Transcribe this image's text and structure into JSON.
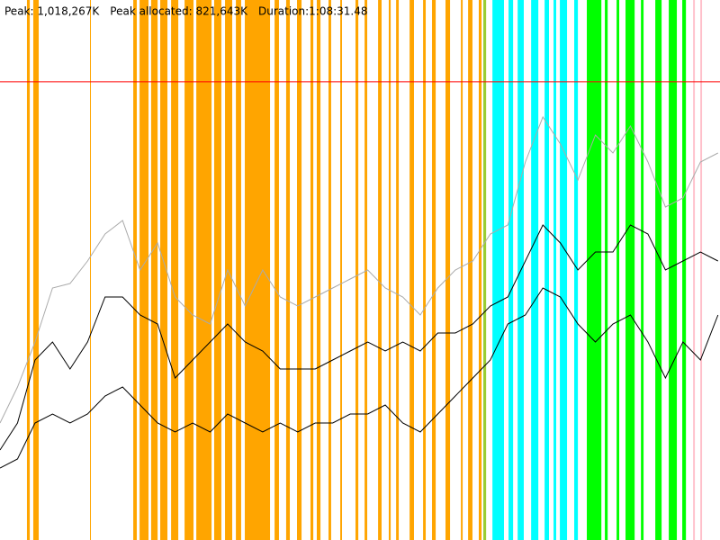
{
  "chart_data": {
    "type": "line",
    "annotations": [
      "Peak: 1,018,267K",
      "Peak allocated: 821,643K",
      "Duration:1:08:31.48"
    ],
    "xlim": [
      0,
      4111.48
    ],
    "ylim": [
      0,
      1200
    ],
    "reference_line": {
      "value": 1018.267,
      "color": "#ff0000"
    },
    "bands": [
      {
        "color": "#ffa500",
        "spans": [
          [
            154,
            170
          ],
          [
            190,
            221
          ],
          [
            514,
            519
          ],
          [
            761,
            781
          ],
          [
            797,
            848
          ],
          [
            863,
            900
          ],
          [
            915,
            956
          ],
          [
            977,
            1018
          ],
          [
            1054,
            1105
          ],
          [
            1121,
            1208
          ],
          [
            1223,
            1264
          ],
          [
            1285,
            1326
          ],
          [
            1347,
            1377
          ],
          [
            1398,
            1542
          ],
          [
            1568,
            1593
          ],
          [
            1634,
            1655
          ],
          [
            1696,
            1722
          ],
          [
            1773,
            1789
          ],
          [
            1809,
            1830
          ],
          [
            1876,
            1891
          ],
          [
            1943,
            1953
          ],
          [
            2030,
            2046
          ],
          [
            2082,
            2097
          ],
          [
            2159,
            2179
          ],
          [
            2220,
            2231
          ],
          [
            2262,
            2277
          ],
          [
            2339,
            2364
          ],
          [
            2416,
            2431
          ],
          [
            2467,
            2488
          ],
          [
            2544,
            2570
          ],
          [
            2632,
            2642
          ],
          [
            2673,
            2698
          ],
          [
            2734,
            2750
          ]
        ]
      },
      {
        "color": "#9acd32",
        "spans": [
          [
            2760,
            2776
          ]
        ]
      },
      {
        "color": "#00ffff",
        "spans": [
          [
            2812,
            2878
          ],
          [
            2904,
            2930
          ],
          [
            2956,
            2991
          ],
          [
            3033,
            3074
          ],
          [
            3110,
            3135
          ],
          [
            3161,
            3176
          ],
          [
            3197,
            3238
          ],
          [
            3279,
            3300
          ]
        ]
      },
      {
        "color": "#00ff00",
        "spans": [
          [
            3351,
            3434
          ],
          [
            3454,
            3470
          ],
          [
            3521,
            3536
          ],
          [
            3572,
            3624
          ],
          [
            3660,
            3675
          ],
          [
            3742,
            3778
          ],
          [
            3819,
            3865
          ],
          [
            3896,
            3917
          ]
        ]
      },
      {
        "color": "#ffc0cb",
        "spans": [
          [
            3958,
            3968
          ],
          [
            3999,
            4009
          ]
        ]
      }
    ],
    "x": [
      0,
      100,
      200,
      300,
      400,
      500,
      600,
      700,
      800,
      900,
      1000,
      1100,
      1200,
      1300,
      1400,
      1500,
      1600,
      1700,
      1800,
      1900,
      2000,
      2100,
      2200,
      2300,
      2400,
      2500,
      2600,
      2700,
      2800,
      2900,
      3000,
      3100,
      3200,
      3300,
      3400,
      3500,
      3600,
      3700,
      3800,
      3900,
      4000,
      4100
    ],
    "series": [
      {
        "color": "#aaaaaa",
        "values": [
          260,
          340,
          440,
          560,
          570,
          620,
          680,
          710,
          600,
          660,
          540,
          500,
          480,
          600,
          520,
          600,
          540,
          520,
          540,
          560,
          580,
          600,
          560,
          540,
          500,
          560,
          600,
          620,
          680,
          700,
          840,
          940,
          880,
          800,
          900,
          860,
          920,
          840,
          740,
          760,
          840,
          860
        ]
      },
      {
        "color": "#000000",
        "values": [
          200,
          260,
          400,
          440,
          380,
          440,
          540,
          540,
          500,
          480,
          360,
          400,
          440,
          480,
          440,
          420,
          380,
          380,
          380,
          400,
          420,
          440,
          420,
          440,
          420,
          460,
          460,
          480,
          520,
          540,
          620,
          700,
          660,
          600,
          640,
          640,
          700,
          680,
          600,
          620,
          640,
          620
        ]
      },
      {
        "color": "#000000",
        "values": [
          160,
          180,
          260,
          280,
          260,
          280,
          320,
          340,
          300,
          260,
          240,
          260,
          240,
          280,
          260,
          240,
          260,
          240,
          260,
          260,
          280,
          280,
          300,
          260,
          240,
          280,
          320,
          360,
          400,
          480,
          500,
          560,
          540,
          480,
          440,
          480,
          500,
          440,
          360,
          440,
          400,
          500
        ]
      }
    ]
  }
}
